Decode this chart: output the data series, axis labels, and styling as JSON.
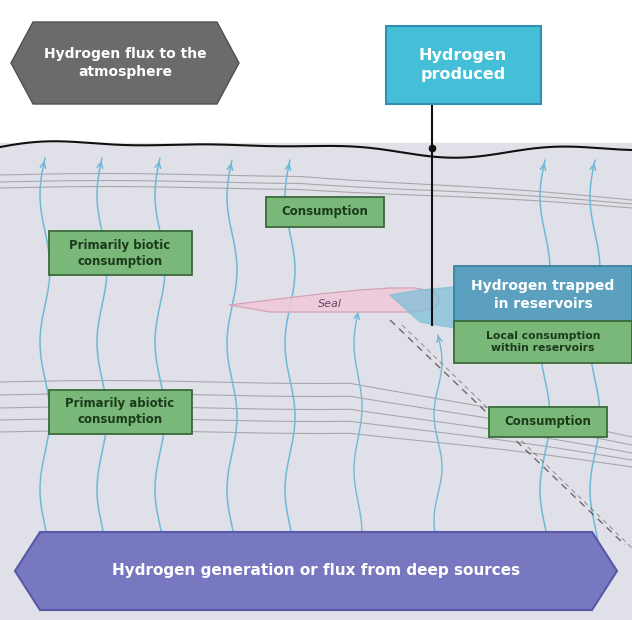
{
  "bg_white": "#ffffff",
  "bg_underground": "#e0e0e8",
  "surface_color": "#111111",
  "atm_box_text": "Hydrogen flux to the\natmosphere",
  "atm_box_color": "#6b6b6b",
  "produced_box_text": "Hydrogen\nproduced",
  "produced_box_color": "#45bfd8",
  "produced_box_edge": "#3090b0",
  "reservoir_text": "Hydrogen trapped\nin reservoirs",
  "reservoir_color": "#5ba0be",
  "reservoir_edge": "#3a80a0",
  "local_text": "Local consumption\nwithin reservoirs",
  "green_face": "#7ab87a",
  "green_edge": "#3a6a3a",
  "green_text": "#1a3a1a",
  "biotic_text": "Primarily biotic\nconsumption",
  "abiotic_text": "Primarily abiotic\nconsumption",
  "consumption_text": "Consumption",
  "seal_text": "Seal",
  "seal_color": "#f0c8d8",
  "seal_edge": "#d0a0b8",
  "arrow_color": "#70b8d8",
  "strata_color": "#909090",
  "fault_color": "#555555",
  "bottom_color": "#7878c0",
  "bottom_edge": "#5858a8",
  "bottom_text": "Hydrogen generation or flux from deep sources",
  "res_fill": "#80c0d8",
  "well_color": "#111111"
}
